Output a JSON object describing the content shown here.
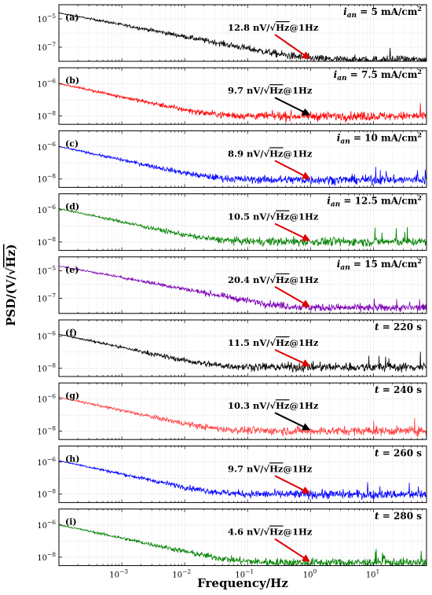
{
  "chart_data": {
    "type": "line",
    "xlabel": "Frequency/Hz",
    "ylabel": "PSD/(V/√Hz)",
    "x_scale": "log",
    "y_scale": "log",
    "xlim": [
      0.0001,
      70
    ],
    "x_ticks": [
      "10^-3",
      "10^-2",
      "10^-1",
      "10^0",
      "10^1"
    ],
    "grid": true,
    "panels": [
      {
        "label": "(a)",
        "color": "#000000",
        "condition": "i_an = 5 mA/cm^2",
        "annotation": "12.8 nV/√Hz@1Hz",
        "arrow_color": "#e00000",
        "y_ticks": [
          "10^-5",
          "10^-7"
        ],
        "ylim": [
          1e-08,
          0.0001
        ],
        "start": 3e-05,
        "floor": 1.28e-08,
        "noise_at_1Hz_nV_per_rtHz": 12.8
      },
      {
        "label": "(b)",
        "color": "#ff0000",
        "condition": "i_an = 7.5 mA/cm^2",
        "annotation": "9.7 nV/√Hz@1Hz",
        "arrow_color": "#000000",
        "y_ticks": [
          "10^-6",
          "10^-8"
        ],
        "ylim": [
          3e-09,
          1e-05
        ],
        "start": 1.2e-06,
        "floor": 9.7e-09,
        "noise_at_1Hz_nV_per_rtHz": 9.7
      },
      {
        "label": "(c)",
        "color": "#0000ff",
        "condition": "i_an = 10 mA/cm^2",
        "annotation": "8.9 nV/√Hz@1Hz",
        "arrow_color": "#e00000",
        "y_ticks": [
          "10^-6",
          "10^-8"
        ],
        "ylim": [
          3e-09,
          1e-05
        ],
        "start": 1.2e-06,
        "floor": 8.9e-09,
        "noise_at_1Hz_nV_per_rtHz": 8.9
      },
      {
        "label": "(d)",
        "color": "#008000",
        "condition": "i_an = 12.5 mA/cm^2",
        "annotation": "10.5 nV/√Hz@1Hz",
        "arrow_color": "#e00000",
        "y_ticks": [
          "10^-6",
          "10^-8"
        ],
        "ylim": [
          3e-09,
          1e-05
        ],
        "start": 1.4e-06,
        "floor": 1.05e-08,
        "noise_at_1Hz_nV_per_rtHz": 10.5
      },
      {
        "label": "(e)",
        "color": "#7b00b4",
        "condition": "i_an = 15 mA/cm^2",
        "annotation": "20.4 nV/√Hz@1Hz",
        "arrow_color": "#e00000",
        "y_ticks": [
          "10^-5",
          "10^-7"
        ],
        "ylim": [
          8e-09,
          0.0001
        ],
        "start": 2.5e-05,
        "floor": 2.04e-08,
        "noise_at_1Hz_nV_per_rtHz": 20.4
      },
      {
        "label": "(f)",
        "color": "#000000",
        "condition": "t = 220 s",
        "annotation": "11.5 nV/√Hz@1Hz",
        "arrow_color": "#e00000",
        "y_ticks": [
          "10^-6",
          "10^-8"
        ],
        "ylim": [
          3e-09,
          1e-05
        ],
        "start": 1.5e-06,
        "floor": 1.15e-08,
        "noise_at_1Hz_nV_per_rtHz": 11.5
      },
      {
        "label": "(g)",
        "color": "#ff4040",
        "condition": "t = 240 s",
        "annotation": "10.3 nV/√Hz@1Hz",
        "arrow_color": "#000000",
        "y_ticks": [
          "10^-6",
          "10^-8"
        ],
        "ylim": [
          3e-09,
          1e-05
        ],
        "start": 1.5e-06,
        "floor": 1.03e-08,
        "noise_at_1Hz_nV_per_rtHz": 10.3
      },
      {
        "label": "(h)",
        "color": "#0000ff",
        "condition": "t = 260 s",
        "annotation": "9.7 nV/√Hz@1Hz",
        "arrow_color": "#e00000",
        "y_ticks": [
          "10^-6",
          "10^-8"
        ],
        "ylim": [
          3e-09,
          1e-05
        ],
        "start": 1.4e-06,
        "floor": 9.7e-09,
        "noise_at_1Hz_nV_per_rtHz": 9.7
      },
      {
        "label": "(i)",
        "color": "#008000",
        "condition": "t = 280 s",
        "annotation": "4.6 nV/√Hz@1Hz",
        "arrow_color": "#e00000",
        "y_ticks": [
          "10^-6",
          "10^-8"
        ],
        "ylim": [
          3e-09,
          1e-05
        ],
        "start": 1.2e-06,
        "floor": 4.6e-09,
        "noise_at_1Hz_nV_per_rtHz": 4.6
      }
    ]
  }
}
